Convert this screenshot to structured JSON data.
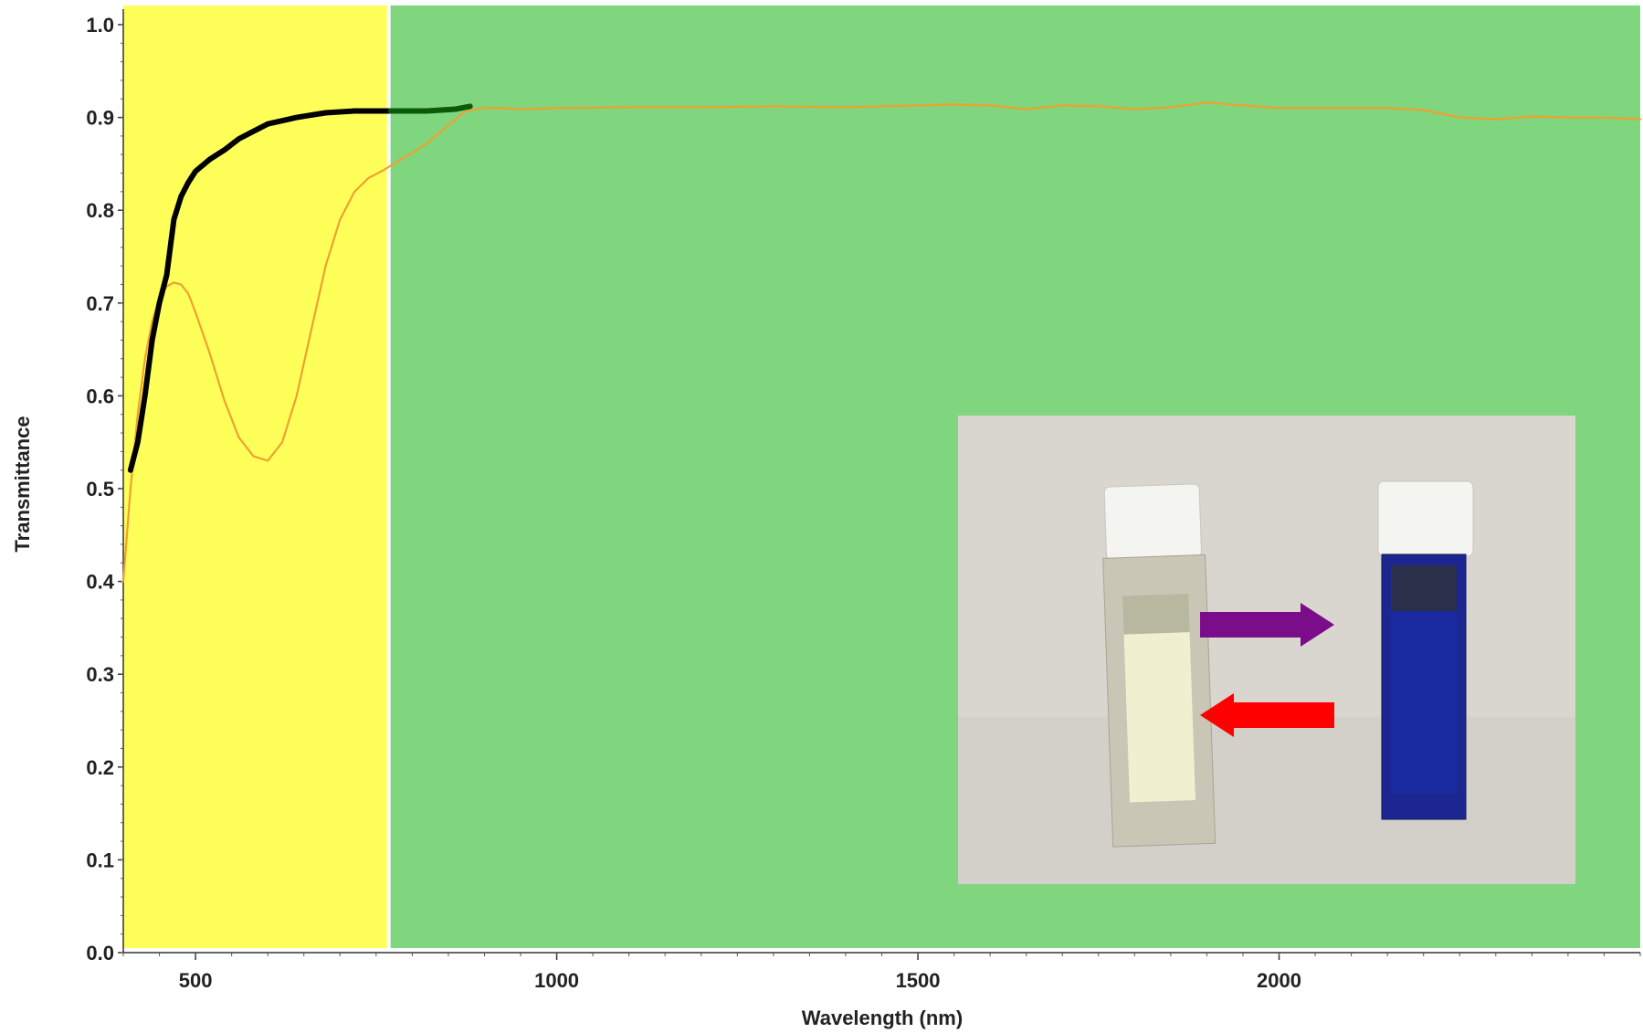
{
  "chart_data": {
    "type": "line",
    "xlabel": "Wavelength (nm)",
    "ylabel": "Transmittance",
    "xlim": [
      400,
      2500
    ],
    "ylim": [
      0.0,
      1.0
    ],
    "x_ticks": [
      500,
      1000,
      1500,
      2000
    ],
    "x_tick_labels": [
      "500",
      "1000",
      "1500",
      "2000"
    ],
    "y_ticks": [
      0.0,
      0.1,
      0.2,
      0.3,
      0.4,
      0.5,
      0.6,
      0.7,
      0.8,
      0.9,
      1.0
    ],
    "y_tick_labels": [
      "0.0",
      "0.1",
      "0.2",
      "0.3",
      "0.4",
      "0.5",
      "0.6",
      "0.7",
      "0.8",
      "0.9",
      "1.0"
    ],
    "grid": false,
    "legend": "none",
    "regions": [
      {
        "x_range": [
          400,
          765
        ],
        "color": "#ffff5a"
      },
      {
        "x_range": [
          770,
          2500
        ],
        "color": "#7fd67f"
      }
    ],
    "series": [
      {
        "color": "#f0a030",
        "x": [
          400,
          410,
          420,
          430,
          440,
          450,
          460,
          470,
          480,
          490,
          500,
          520,
          540,
          560,
          580,
          600,
          620,
          640,
          660,
          680,
          700,
          720,
          740,
          760,
          780,
          800,
          820,
          840,
          860,
          870,
          880,
          900,
          920,
          950,
          1000,
          1100,
          1200,
          1300,
          1400,
          1500,
          1550,
          1600,
          1650,
          1700,
          1750,
          1800,
          1850,
          1900,
          1950,
          2000,
          2050,
          2100,
          2150,
          2200,
          2250,
          2300,
          2350,
          2400,
          2450,
          2500
        ],
        "y": [
          0.4,
          0.5,
          0.58,
          0.64,
          0.68,
          0.705,
          0.718,
          0.722,
          0.72,
          0.71,
          0.69,
          0.645,
          0.595,
          0.555,
          0.535,
          0.53,
          0.55,
          0.6,
          0.67,
          0.74,
          0.79,
          0.82,
          0.835,
          0.843,
          0.853,
          0.862,
          0.872,
          0.885,
          0.898,
          0.905,
          0.908,
          0.91,
          0.91,
          0.909,
          0.91,
          0.911,
          0.911,
          0.912,
          0.911,
          0.913,
          0.914,
          0.913,
          0.909,
          0.913,
          0.912,
          0.909,
          0.911,
          0.916,
          0.913,
          0.91,
          0.91,
          0.91,
          0.91,
          0.908,
          0.9,
          0.898,
          0.901,
          0.9,
          0.9,
          0.898
        ]
      },
      {
        "color": "#000000",
        "x": [
          410,
          420,
          430,
          440,
          450,
          460,
          470,
          480,
          490,
          500,
          520,
          540,
          560,
          580,
          600,
          640,
          680,
          720,
          740,
          760,
          770
        ],
        "y": [
          0.52,
          0.55,
          0.6,
          0.66,
          0.7,
          0.73,
          0.79,
          0.815,
          0.83,
          0.842,
          0.855,
          0.865,
          0.877,
          0.885,
          0.893,
          0.9,
          0.905,
          0.907,
          0.907,
          0.907,
          0.907
        ]
      },
      {
        "color": "#0a5a0a",
        "x": [
          770,
          800,
          820,
          840,
          860,
          880
        ],
        "y": [
          0.907,
          0.907,
          0.907,
          0.908,
          0.909,
          0.912
        ]
      }
    ],
    "annotations": [
      {
        "type": "arrow",
        "direction": "right",
        "color": "#7b0c8a"
      },
      {
        "type": "arrow",
        "direction": "left",
        "color": "#ff0000"
      }
    ]
  },
  "inset": {
    "background": "#d8d6cf",
    "cuvette_left_solution": "#f0f0d0",
    "cuvette_right_solution": "#1a2aa0"
  }
}
